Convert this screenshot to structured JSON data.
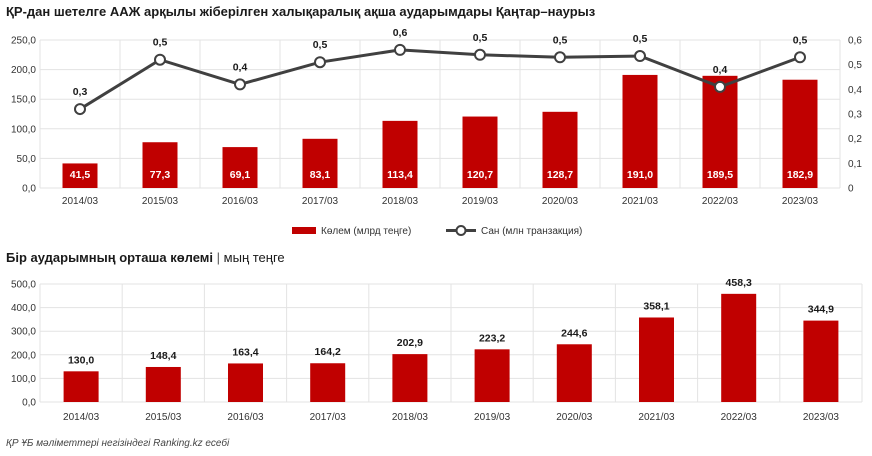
{
  "chart1": {
    "title": "ҚР-дан шетелге ААЖ арқылы жіберілген халықаралық ақша аударымдары Қаңтар–наурыз",
    "chart_data": {
      "type": "bar",
      "categories": [
        "2014/03",
        "2015/03",
        "2016/03",
        "2017/03",
        "2018/03",
        "2019/03",
        "2020/03",
        "2021/03",
        "2022/03",
        "2023/03"
      ],
      "series": [
        {
          "name": "Көлем (млрд теңге)",
          "type": "bar",
          "axis": "left",
          "values": [
            41.5,
            77.3,
            69.1,
            83.1,
            113.4,
            120.7,
            128.7,
            191.0,
            189.5,
            182.9
          ],
          "labels": [
            "41,5",
            "77,3",
            "69,1",
            "83,1",
            "113,4",
            "120,7",
            "128,7",
            "191,0",
            "189,5",
            "182,9"
          ],
          "color": "#c00000"
        },
        {
          "name": "Сан (млн транзакция)",
          "type": "line",
          "axis": "right",
          "values": [
            0.32,
            0.52,
            0.42,
            0.51,
            0.56,
            0.54,
            0.53,
            0.535,
            0.41,
            0.53
          ],
          "labels": [
            "0,3",
            "0,5",
            "0,4",
            "0,5",
            "0,6",
            "0,5",
            "0,5",
            "0,5",
            "0,4",
            "0,5"
          ],
          "color": "#404040"
        }
      ],
      "ylim": [
        0,
        250
      ],
      "yticks": [
        "0,0",
        "50,0",
        "100,0",
        "150,0",
        "200,0",
        "250,0"
      ],
      "y2lim": [
        0,
        0.6
      ],
      "y2ticks": [
        "0",
        "0,1",
        "0,2",
        "0,3",
        "0,4",
        "0,5",
        "0,6"
      ],
      "grid": true,
      "legend": "bottom"
    }
  },
  "chart2": {
    "title": "Бір аударымның орташа көлемі",
    "sep": "|",
    "subtitle": "мың теңге",
    "chart_data": {
      "type": "bar",
      "categories": [
        "2014/03",
        "2015/03",
        "2016/03",
        "2017/03",
        "2018/03",
        "2019/03",
        "2020/03",
        "2021/03",
        "2022/03",
        "2023/03"
      ],
      "values": [
        130.0,
        148.4,
        163.4,
        164.2,
        202.9,
        223.2,
        244.6,
        358.1,
        458.3,
        344.9
      ],
      "labels": [
        "130,0",
        "148,4",
        "163,4",
        "164,2",
        "202,9",
        "223,2",
        "244,6",
        "358,1",
        "458,3",
        "344,9"
      ],
      "color": "#c00000",
      "ylim": [
        0,
        500
      ],
      "yticks": [
        "0,0",
        "100,0",
        "200,0",
        "300,0",
        "400,0",
        "500,0"
      ],
      "grid": true
    }
  },
  "footer": "ҚР ҰБ мәліметтері негізіндегі Ranking.kz есебі"
}
